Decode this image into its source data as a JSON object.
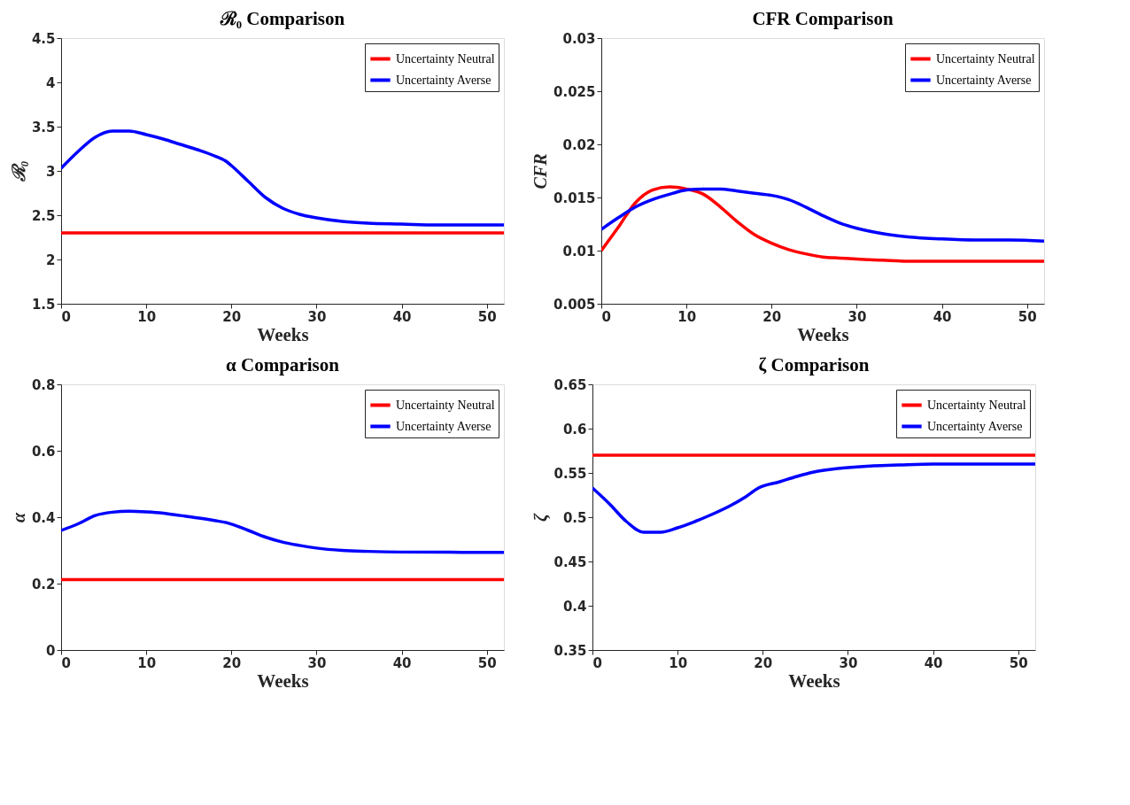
{
  "chart_data": [
    {
      "type": "line",
      "title": "ℛ₀ Comparison",
      "xlabel": "Weeks",
      "ylabel": "ℛ₀",
      "xlim": [
        0,
        52
      ],
      "xticks": [
        0,
        10,
        20,
        30,
        40,
        50
      ],
      "ylim": [
        1.5,
        4.5
      ],
      "yticks": [
        1.5,
        2,
        2.5,
        3,
        3.5,
        4,
        4.5
      ],
      "grid": false,
      "legend": "top right",
      "marker": "none",
      "line_style": "solid",
      "series": [
        {
          "name": "Uncertainty Neutral",
          "color": "#ff0000",
          "x": [
            0,
            52
          ],
          "values": [
            2.3,
            2.3
          ]
        },
        {
          "name": "Uncertainty Averse",
          "color": "#0000ff",
          "x": [
            0,
            2,
            4,
            6,
            8,
            10,
            12,
            14,
            16,
            18,
            19.5,
            20,
            22,
            24,
            26,
            28,
            30,
            33,
            36,
            40,
            44,
            48,
            52
          ],
          "values": [
            3.03,
            3.22,
            3.38,
            3.45,
            3.45,
            3.41,
            3.36,
            3.3,
            3.24,
            3.17,
            3.1,
            3.06,
            2.88,
            2.7,
            2.58,
            2.51,
            2.47,
            2.43,
            2.41,
            2.4,
            2.39,
            2.39,
            2.39
          ]
        }
      ]
    },
    {
      "type": "line",
      "title": "CFR Comparison",
      "xlabel": "Weeks",
      "ylabel": "CFR",
      "xlim": [
        0,
        52
      ],
      "xticks": [
        0,
        10,
        20,
        30,
        40,
        50
      ],
      "ylim": [
        0.005,
        0.03
      ],
      "yticks": [
        0.005,
        0.01,
        0.015,
        0.02,
        0.025,
        0.03
      ],
      "grid": false,
      "legend": "top right",
      "marker": "none",
      "line_style": "solid",
      "series": [
        {
          "name": "Uncertainty Neutral",
          "color": "#ff0000",
          "x": [
            0,
            2,
            4,
            6,
            8,
            10,
            12,
            14,
            16,
            18,
            20,
            22,
            24,
            26,
            28,
            30,
            33,
            36,
            40,
            44,
            52
          ],
          "values": [
            0.01,
            0.0122,
            0.0145,
            0.0157,
            0.016,
            0.0158,
            0.0153,
            0.0141,
            0.0127,
            0.0115,
            0.0107,
            0.0101,
            0.0097,
            0.0094,
            0.0093,
            0.0092,
            0.0091,
            0.009,
            0.009,
            0.009,
            0.009
          ]
        },
        {
          "name": "Uncertainty Averse",
          "color": "#0000ff",
          "x": [
            0,
            2,
            4,
            6,
            8,
            10,
            12,
            14,
            16,
            18,
            20,
            22,
            24,
            26,
            28,
            30,
            33,
            36,
            40,
            44,
            48,
            52
          ],
          "values": [
            0.012,
            0.0131,
            0.0141,
            0.0148,
            0.0153,
            0.0157,
            0.0158,
            0.0158,
            0.0156,
            0.0154,
            0.0152,
            0.0148,
            0.0141,
            0.0133,
            0.0126,
            0.0121,
            0.0116,
            0.0113,
            0.0111,
            0.011,
            0.011,
            0.0109
          ]
        }
      ]
    },
    {
      "type": "line",
      "title": "α Comparison",
      "xlabel": "Weeks",
      "ylabel": "α",
      "xlim": [
        0,
        52
      ],
      "xticks": [
        0,
        10,
        20,
        30,
        40,
        50
      ],
      "ylim": [
        0,
        0.8
      ],
      "yticks": [
        0,
        0.2,
        0.4,
        0.6,
        0.8
      ],
      "grid": false,
      "legend": "top right",
      "marker": "none",
      "line_style": "solid",
      "series": [
        {
          "name": "Uncertainty Neutral",
          "color": "#ff0000",
          "x": [
            0,
            52
          ],
          "values": [
            0.212,
            0.212
          ]
        },
        {
          "name": "Uncertainty Averse",
          "color": "#0000ff",
          "x": [
            0,
            2,
            4,
            6,
            8,
            10,
            12,
            14,
            16,
            18,
            19.5,
            22,
            24,
            26,
            28,
            30,
            33,
            36,
            40,
            52
          ],
          "values": [
            0.36,
            0.38,
            0.405,
            0.415,
            0.418,
            0.416,
            0.412,
            0.405,
            0.398,
            0.39,
            0.383,
            0.36,
            0.34,
            0.325,
            0.315,
            0.307,
            0.3,
            0.297,
            0.295,
            0.294
          ]
        }
      ]
    },
    {
      "type": "line",
      "title": "ζ Comparison",
      "xlabel": "Weeks",
      "ylabel": "ζ",
      "xlim": [
        0,
        52
      ],
      "xticks": [
        0,
        10,
        20,
        30,
        40,
        50
      ],
      "ylim": [
        0.35,
        0.65
      ],
      "yticks": [
        0.35,
        0.4,
        0.45,
        0.5,
        0.55,
        0.6,
        0.65
      ],
      "grid": false,
      "legend": "top right",
      "marker": "none",
      "line_style": "solid",
      "series": [
        {
          "name": "Uncertainty Neutral",
          "color": "#ff0000",
          "x": [
            0,
            52
          ],
          "values": [
            0.57,
            0.57
          ]
        },
        {
          "name": "Uncertainty Averse",
          "color": "#0000ff",
          "x": [
            0,
            2,
            4,
            6,
            8,
            10,
            12,
            14,
            16,
            18,
            19.5,
            22,
            24,
            26,
            28,
            30,
            33,
            36,
            40,
            52
          ],
          "values": [
            0.533,
            0.515,
            0.495,
            0.483,
            0.483,
            0.488,
            0.495,
            0.503,
            0.512,
            0.523,
            0.533,
            0.54,
            0.546,
            0.551,
            0.554,
            0.556,
            0.558,
            0.559,
            0.56,
            0.56
          ]
        }
      ]
    }
  ]
}
